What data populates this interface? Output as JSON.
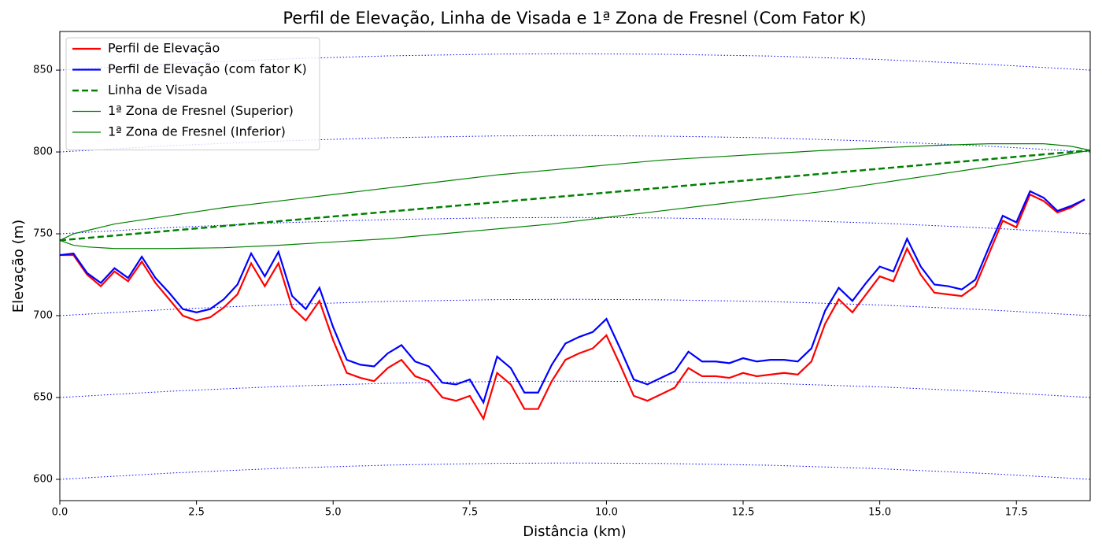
{
  "chart_data": {
    "type": "line",
    "title": "Perfil de Elevação, Linha de Visada e 1ª Zona de Fresnel (Com Fator K)",
    "xlabel": "Distância (km)",
    "ylabel": "Elevação (m)",
    "xlim": [
      0,
      18.85
    ],
    "ylim": [
      587,
      873.6
    ],
    "xticks": [
      {
        "value": 0,
        "label": "0.0"
      },
      2.5,
      {
        "value": 5,
        "label": "5.0"
      },
      7.5,
      {
        "value": 10,
        "label": "10.0"
      },
      12.5,
      {
        "value": 15,
        "label": "15.0"
      },
      17.5
    ],
    "yticks": [
      600,
      650,
      700,
      750,
      800,
      850
    ],
    "legend": "upper left",
    "series": [
      {
        "color": "#0000ff",
        "dash": "dotted",
        "width": 1,
        "x": [
          0,
          2,
          4,
          6,
          8,
          9.425,
          11,
          13,
          15,
          17,
          18.85
        ],
        "values": [
          600,
          603.8,
          606.7,
          608.7,
          609.8,
          610,
          609.7,
          608.6,
          606.5,
          603.5,
          600
        ]
      },
      {
        "color": "#0000ff",
        "dash": "dotted",
        "width": 1,
        "x": [
          0,
          2,
          4,
          6,
          8,
          9.425,
          11,
          13,
          15,
          17,
          18.85
        ],
        "values": [
          650,
          653.8,
          656.7,
          658.7,
          659.8,
          660,
          659.7,
          658.6,
          656.5,
          653.5,
          650
        ]
      },
      {
        "color": "#0000ff",
        "dash": "dotted",
        "width": 1,
        "x": [
          0,
          2,
          4,
          6,
          8,
          9.425,
          11,
          13,
          15,
          17,
          18.85
        ],
        "values": [
          700,
          703.8,
          706.7,
          708.7,
          709.8,
          710,
          709.7,
          708.6,
          706.5,
          703.5,
          700
        ]
      },
      {
        "color": "#0000ff",
        "dash": "dotted",
        "width": 1,
        "x": [
          0,
          2,
          4,
          6,
          8,
          9.425,
          11,
          13,
          15,
          17,
          18.85
        ],
        "values": [
          750,
          753.8,
          756.7,
          758.7,
          759.8,
          760,
          759.7,
          758.6,
          756.5,
          753.5,
          750
        ]
      },
      {
        "color": "#0000ff",
        "dash": "dotted",
        "width": 1,
        "x": [
          0,
          2,
          4,
          6,
          8,
          9.425,
          11,
          13,
          15,
          17,
          18.85
        ],
        "values": [
          800,
          803.8,
          806.7,
          808.7,
          809.8,
          810,
          809.7,
          808.6,
          806.5,
          803.5,
          800
        ]
      },
      {
        "color": "#0000ff",
        "dash": "dotted",
        "width": 1,
        "x": [
          0,
          2,
          4,
          6,
          8,
          9.425,
          11,
          13,
          15,
          17,
          18.85
        ],
        "values": [
          850,
          853.8,
          856.7,
          858.7,
          859.8,
          860,
          859.7,
          858.6,
          856.5,
          853.5,
          850
        ]
      },
      {
        "name": "Perfil de Elevação",
        "color": "#ff0000",
        "dash": "solid",
        "width": 2.2,
        "x": [
          0,
          0.25,
          0.5,
          0.75,
          1,
          1.25,
          1.5,
          1.75,
          2,
          2.25,
          2.5,
          2.75,
          3,
          3.25,
          3.5,
          3.75,
          4,
          4.25,
          4.5,
          4.75,
          5,
          5.25,
          5.5,
          5.75,
          6,
          6.25,
          6.5,
          6.75,
          7,
          7.25,
          7.5,
          7.75,
          8,
          8.25,
          8.5,
          8.75,
          9,
          9.25,
          9.5,
          9.75,
          10,
          10.25,
          10.5,
          10.75,
          11,
          11.25,
          11.5,
          11.75,
          12,
          12.25,
          12.5,
          12.75,
          13,
          13.25,
          13.5,
          13.75,
          14,
          14.25,
          14.5,
          14.75,
          15,
          15.25,
          15.5,
          15.75,
          16,
          16.25,
          16.5,
          16.75,
          17,
          17.25,
          17.5,
          17.75,
          18,
          18.25,
          18.5,
          18.75
        ],
        "values": [
          737,
          737,
          725,
          718,
          727,
          721,
          733,
          720,
          710,
          700,
          697,
          699,
          705,
          713,
          732,
          718,
          732,
          705,
          697,
          709,
          685,
          665,
          662,
          660,
          668,
          673,
          663,
          660,
          650,
          648,
          651,
          637,
          665,
          658,
          643,
          643,
          660,
          673,
          677,
          680,
          688,
          670,
          651,
          648,
          652,
          656,
          668,
          663,
          663,
          662,
          665,
          663,
          664,
          665,
          664,
          672,
          695,
          710,
          702,
          713,
          724,
          721,
          741,
          725,
          714,
          713,
          712,
          718,
          738,
          758,
          754,
          774,
          770,
          763,
          766,
          771
        ]
      },
      {
        "name": "Perfil de Elevação (com fator K)",
        "color": "#0000ff",
        "dash": "solid",
        "width": 2.2,
        "x": [
          0,
          0.25,
          0.5,
          0.75,
          1,
          1.25,
          1.5,
          1.75,
          2,
          2.25,
          2.5,
          2.75,
          3,
          3.25,
          3.5,
          3.75,
          4,
          4.25,
          4.5,
          4.75,
          5,
          5.25,
          5.5,
          5.75,
          6,
          6.25,
          6.5,
          6.75,
          7,
          7.25,
          7.5,
          7.75,
          8,
          8.25,
          8.5,
          8.75,
          9,
          9.25,
          9.5,
          9.75,
          10,
          10.25,
          10.5,
          10.75,
          11,
          11.25,
          11.5,
          11.75,
          12,
          12.25,
          12.5,
          12.75,
          13,
          13.25,
          13.5,
          13.75,
          14,
          14.25,
          14.5,
          14.75,
          15,
          15.25,
          15.5,
          15.75,
          16,
          16.25,
          16.5,
          16.75,
          17,
          17.25,
          17.5,
          17.75,
          18,
          18.25,
          18.5,
          18.75
        ],
        "values": [
          737,
          738,
          726,
          720,
          729,
          723,
          736,
          723,
          714,
          704,
          702,
          704,
          710,
          719,
          738,
          724,
          739,
          712,
          704,
          717,
          693,
          673,
          670,
          669,
          677,
          682,
          672,
          669,
          659,
          658,
          661,
          647,
          675,
          668,
          653,
          653,
          670,
          683,
          687,
          690,
          698,
          680,
          661,
          658,
          662,
          666,
          678,
          672,
          672,
          671,
          674,
          672,
          673,
          673,
          672,
          680,
          703,
          717,
          709,
          720,
          730,
          727,
          747,
          730,
          719,
          718,
          716,
          722,
          742,
          761,
          757,
          776,
          772,
          764,
          767,
          771
        ]
      },
      {
        "name": "Linha de Visada",
        "color": "#008000",
        "dash": "dashed",
        "width": 2.5,
        "x": [
          0,
          18.85
        ],
        "values": [
          746,
          801
        ]
      },
      {
        "name": "1ª Zona de Fresnel (Superior)",
        "color": "#008000",
        "dash": "solid",
        "width": 1.2,
        "x": [
          0,
          0.25,
          0.5,
          1,
          2,
          3,
          4,
          5,
          6,
          7,
          8,
          9,
          10,
          11,
          12,
          13,
          14,
          15,
          16,
          17,
          18,
          18.5,
          18.85
        ],
        "values": [
          746,
          750,
          752,
          756,
          761,
          766,
          770,
          774,
          778,
          782,
          786,
          789,
          792,
          795,
          797,
          799,
          801,
          802.5,
          804,
          805,
          805,
          803.5,
          801
        ]
      },
      {
        "name": "1ª Zona de Fresnel (Inferior)",
        "color": "#008000",
        "dash": "solid",
        "width": 1.2,
        "x": [
          0,
          0.25,
          0.5,
          1,
          2,
          3,
          4,
          5,
          6,
          7,
          8,
          9,
          10,
          11,
          12,
          13,
          14,
          15,
          16,
          17,
          18,
          18.5,
          18.85
        ],
        "values": [
          746,
          743,
          742,
          741,
          741,
          741.5,
          743,
          745,
          747,
          750,
          753,
          756,
          760,
          764,
          768,
          772,
          776,
          781,
          786,
          791,
          796,
          799,
          801
        ]
      }
    ]
  }
}
